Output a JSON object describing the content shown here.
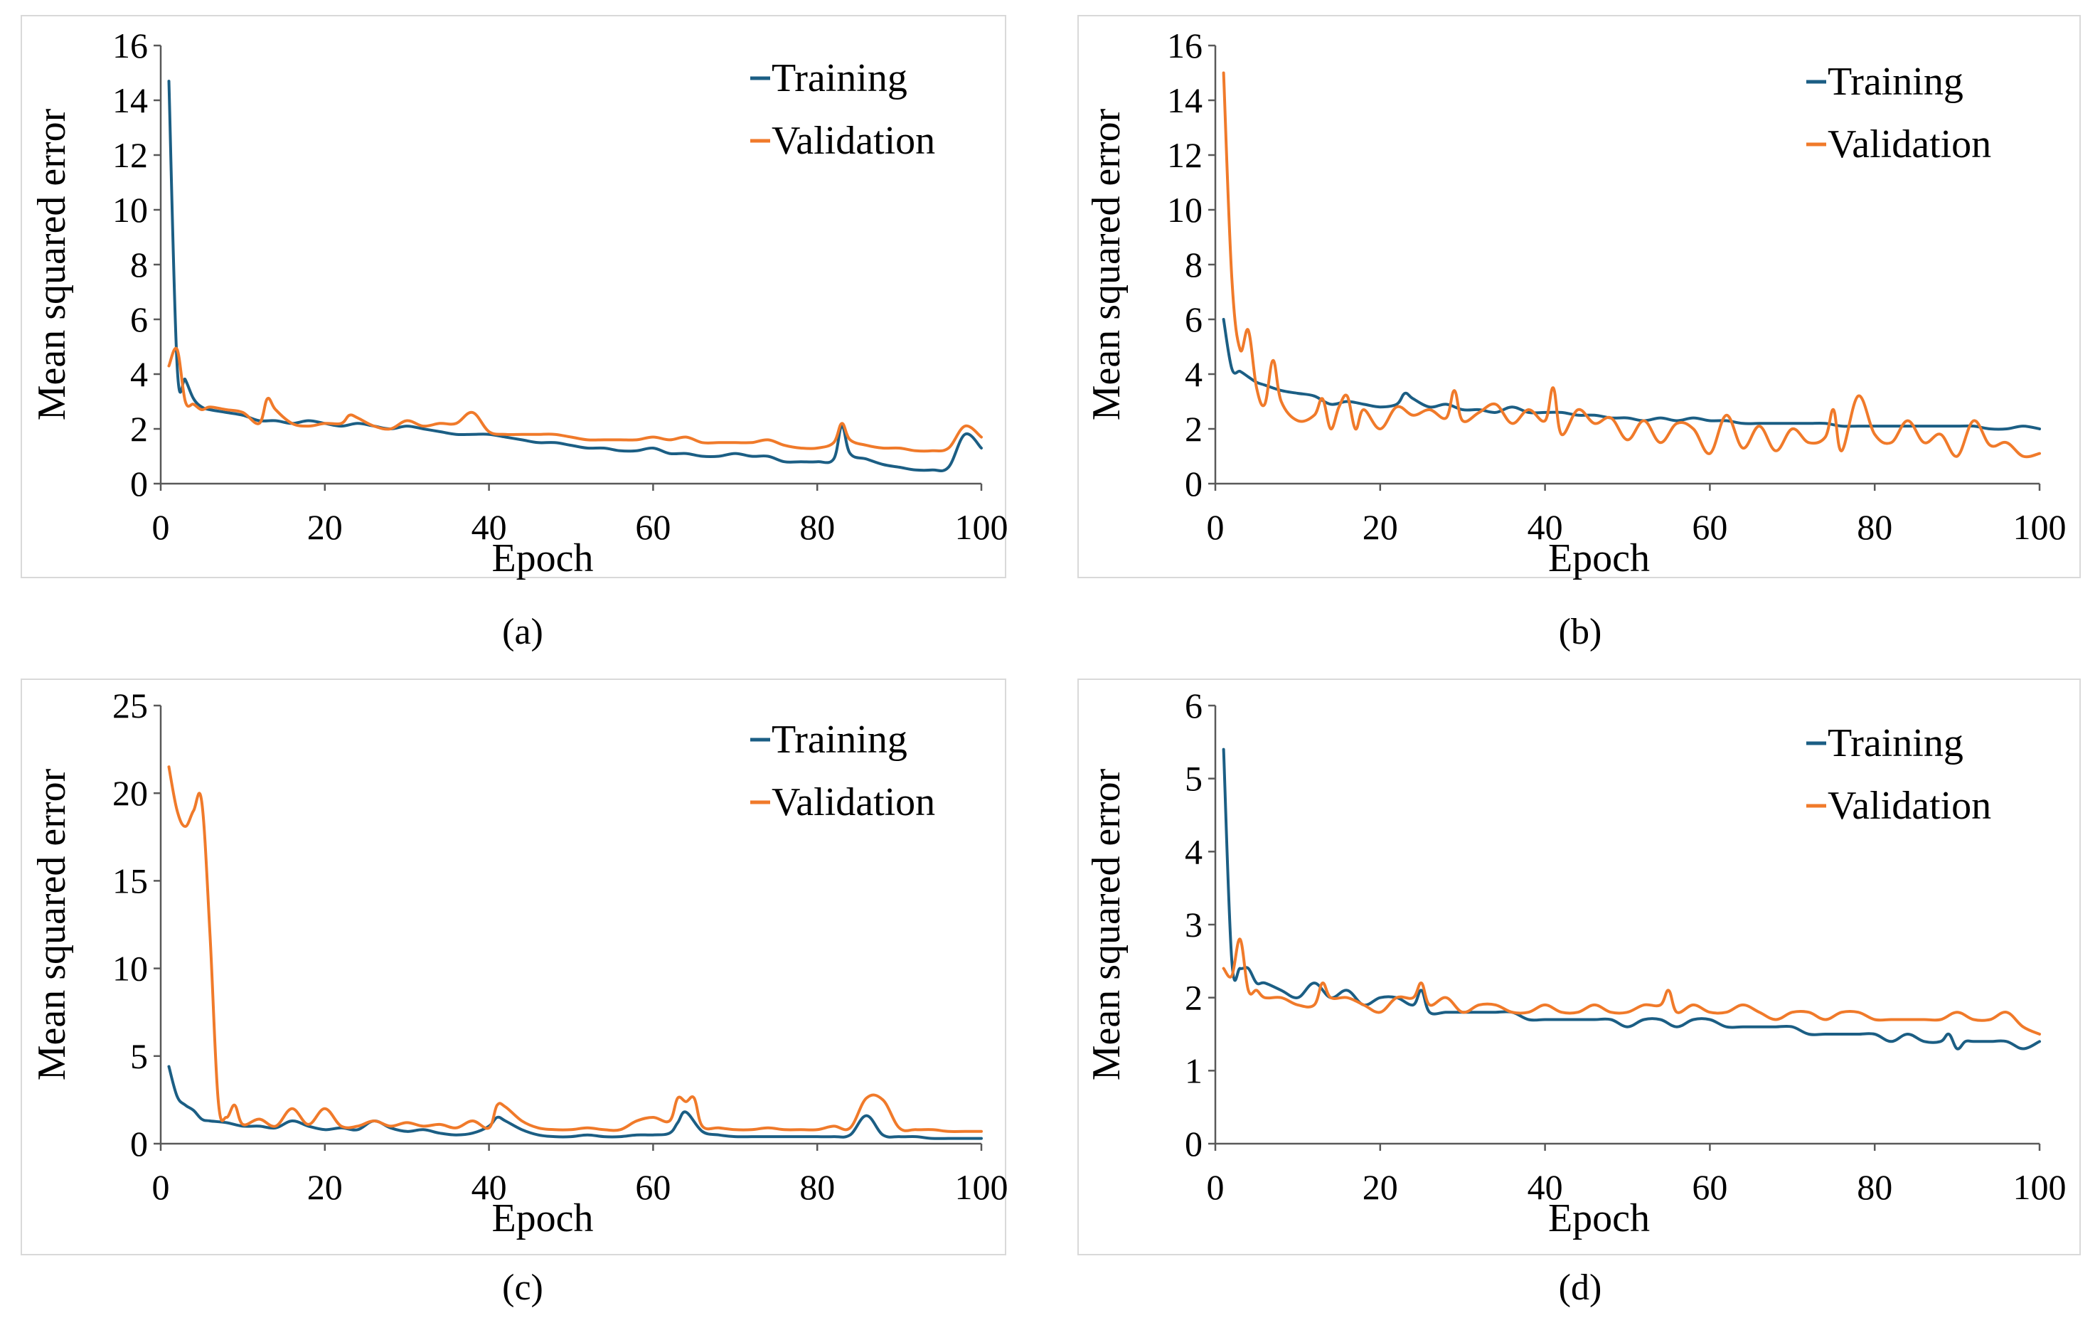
{
  "colors": {
    "training": "#1b5e84",
    "validation": "#f07a2a",
    "frame": "#d9d9d9",
    "axis": "#595959"
  },
  "chart_data": [
    {
      "type": "line",
      "panel": "(a)",
      "xlabel": "Epoch",
      "ylabel": "Mean squared error",
      "xlim": [
        0,
        100
      ],
      "ylim": [
        0,
        16
      ],
      "xticks": [
        "0",
        "20",
        "40",
        "60",
        "80",
        "100"
      ],
      "yticks": [
        "0",
        "2",
        "4",
        "6",
        "8",
        "10",
        "12",
        "14",
        "16"
      ],
      "series": [
        {
          "name": "Training",
          "x": [
            1,
            2,
            3,
            4,
            5,
            6,
            8,
            10,
            12,
            14,
            16,
            18,
            20,
            22,
            24,
            26,
            28,
            30,
            32,
            34,
            36,
            38,
            40,
            42,
            44,
            46,
            48,
            50,
            52,
            54,
            56,
            58,
            60,
            62,
            64,
            66,
            68,
            70,
            72,
            74,
            76,
            78,
            80,
            82,
            83,
            84,
            86,
            88,
            90,
            92,
            94,
            96,
            98,
            100
          ],
          "values": [
            14.7,
            4.3,
            3.8,
            3.1,
            2.8,
            2.7,
            2.6,
            2.5,
            2.3,
            2.3,
            2.2,
            2.3,
            2.2,
            2.1,
            2.2,
            2.1,
            2.0,
            2.1,
            2.0,
            1.9,
            1.8,
            1.8,
            1.8,
            1.7,
            1.6,
            1.5,
            1.5,
            1.4,
            1.3,
            1.3,
            1.2,
            1.2,
            1.3,
            1.1,
            1.1,
            1.0,
            1.0,
            1.1,
            1.0,
            1.0,
            0.8,
            0.8,
            0.8,
            0.9,
            2.1,
            1.1,
            0.9,
            0.7,
            0.6,
            0.5,
            0.5,
            0.6,
            1.8,
            1.3
          ]
        },
        {
          "name": "Validation",
          "x": [
            1,
            2,
            3,
            4,
            5,
            6,
            8,
            10,
            12,
            13,
            14,
            16,
            18,
            20,
            22,
            23,
            24,
            26,
            28,
            30,
            32,
            34,
            36,
            38,
            40,
            42,
            44,
            46,
            48,
            50,
            52,
            54,
            56,
            58,
            60,
            62,
            64,
            66,
            68,
            70,
            72,
            74,
            76,
            78,
            80,
            82,
            83,
            84,
            86,
            88,
            90,
            92,
            94,
            96,
            98,
            100
          ],
          "values": [
            4.3,
            4.9,
            3.0,
            2.9,
            2.7,
            2.8,
            2.7,
            2.6,
            2.2,
            3.1,
            2.7,
            2.2,
            2.1,
            2.2,
            2.2,
            2.5,
            2.4,
            2.1,
            2.0,
            2.3,
            2.1,
            2.2,
            2.2,
            2.6,
            1.9,
            1.8,
            1.8,
            1.8,
            1.8,
            1.7,
            1.6,
            1.6,
            1.6,
            1.6,
            1.7,
            1.6,
            1.7,
            1.5,
            1.5,
            1.5,
            1.5,
            1.6,
            1.4,
            1.3,
            1.3,
            1.5,
            2.2,
            1.6,
            1.4,
            1.3,
            1.3,
            1.2,
            1.2,
            1.3,
            2.1,
            1.7
          ]
        }
      ],
      "legend": [
        "Training",
        "Validation"
      ],
      "caption": "(a)"
    },
    {
      "type": "line",
      "panel": "(b)",
      "xlabel": "Epoch",
      "ylabel": "Mean squared error",
      "xlim": [
        0,
        100
      ],
      "ylim": [
        0,
        16
      ],
      "xticks": [
        "0",
        "20",
        "40",
        "60",
        "80",
        "100"
      ],
      "yticks": [
        "0",
        "2",
        "4",
        "6",
        "8",
        "10",
        "12",
        "14",
        "16"
      ],
      "series": [
        {
          "name": "Training",
          "x": [
            1,
            2,
            3,
            4,
            5,
            6,
            8,
            10,
            12,
            14,
            16,
            18,
            20,
            22,
            23,
            24,
            26,
            28,
            30,
            32,
            34,
            36,
            38,
            40,
            42,
            44,
            46,
            48,
            50,
            52,
            54,
            56,
            58,
            60,
            62,
            64,
            66,
            68,
            70,
            72,
            74,
            76,
            78,
            80,
            82,
            84,
            86,
            88,
            90,
            92,
            94,
            96,
            98,
            100
          ],
          "values": [
            6.0,
            4.2,
            4.1,
            3.9,
            3.7,
            3.6,
            3.4,
            3.3,
            3.2,
            2.9,
            3.0,
            2.9,
            2.8,
            2.9,
            3.3,
            3.1,
            2.8,
            2.9,
            2.7,
            2.7,
            2.6,
            2.8,
            2.6,
            2.6,
            2.6,
            2.5,
            2.5,
            2.4,
            2.4,
            2.3,
            2.4,
            2.3,
            2.4,
            2.3,
            2.3,
            2.2,
            2.2,
            2.2,
            2.2,
            2.2,
            2.2,
            2.1,
            2.1,
            2.1,
            2.1,
            2.1,
            2.1,
            2.1,
            2.1,
            2.1,
            2.0,
            2.0,
            2.1,
            2.0
          ]
        },
        {
          "name": "Validation",
          "x": [
            1,
            2,
            3,
            4,
            5,
            6,
            7,
            8,
            10,
            12,
            13,
            14,
            15,
            16,
            17,
            18,
            20,
            22,
            24,
            26,
            28,
            29,
            30,
            32,
            34,
            36,
            38,
            40,
            41,
            42,
            44,
            46,
            48,
            50,
            52,
            54,
            56,
            58,
            60,
            62,
            64,
            66,
            68,
            70,
            72,
            74,
            75,
            76,
            78,
            80,
            82,
            84,
            86,
            88,
            90,
            92,
            94,
            96,
            98,
            100
          ],
          "values": [
            15.0,
            7.5,
            4.9,
            5.6,
            3.5,
            2.9,
            4.5,
            3.0,
            2.3,
            2.5,
            3.1,
            2.0,
            2.8,
            3.2,
            2.0,
            2.7,
            2.0,
            2.8,
            2.5,
            2.7,
            2.4,
            3.4,
            2.3,
            2.6,
            2.9,
            2.2,
            2.7,
            2.3,
            3.5,
            1.8,
            2.7,
            2.2,
            2.4,
            1.6,
            2.3,
            1.5,
            2.2,
            2.0,
            1.1,
            2.5,
            1.3,
            2.1,
            1.2,
            2.0,
            1.5,
            1.7,
            2.7,
            1.2,
            3.2,
            1.8,
            1.5,
            2.3,
            1.5,
            1.8,
            1.0,
            2.3,
            1.4,
            1.5,
            1.0,
            1.1
          ]
        }
      ],
      "legend": [
        "Training",
        "Validation"
      ],
      "caption": "(b)"
    },
    {
      "type": "line",
      "panel": "(c)",
      "xlabel": "Epoch",
      "ylabel": "Mean squared error",
      "xlim": [
        0,
        100
      ],
      "ylim": [
        0,
        25
      ],
      "xticks": [
        "0",
        "20",
        "40",
        "60",
        "80",
        "100"
      ],
      "yticks": [
        "0",
        "5",
        "10",
        "15",
        "20",
        "25"
      ],
      "series": [
        {
          "name": "Training",
          "x": [
            1,
            2,
            3,
            4,
            5,
            6,
            8,
            10,
            12,
            14,
            16,
            18,
            20,
            22,
            24,
            26,
            28,
            30,
            32,
            34,
            36,
            38,
            40,
            41,
            42,
            44,
            46,
            48,
            50,
            52,
            54,
            56,
            58,
            60,
            62,
            63,
            64,
            66,
            68,
            70,
            72,
            74,
            76,
            78,
            80,
            82,
            84,
            86,
            88,
            90,
            92,
            94,
            96,
            98,
            100
          ],
          "values": [
            4.4,
            2.7,
            2.2,
            1.9,
            1.4,
            1.3,
            1.2,
            1.0,
            1.0,
            0.9,
            1.3,
            1.0,
            0.8,
            0.9,
            0.8,
            1.3,
            0.9,
            0.7,
            0.8,
            0.6,
            0.5,
            0.6,
            1.0,
            1.5,
            1.3,
            0.8,
            0.5,
            0.4,
            0.4,
            0.5,
            0.4,
            0.4,
            0.5,
            0.5,
            0.6,
            1.2,
            1.8,
            0.7,
            0.5,
            0.4,
            0.4,
            0.4,
            0.4,
            0.4,
            0.4,
            0.4,
            0.5,
            1.6,
            0.5,
            0.4,
            0.4,
            0.3,
            0.3,
            0.3,
            0.3
          ]
        },
        {
          "name": "Validation",
          "x": [
            1,
            2,
            3,
            4,
            5,
            6,
            7,
            8,
            9,
            10,
            12,
            14,
            16,
            18,
            20,
            22,
            24,
            26,
            28,
            30,
            32,
            34,
            36,
            38,
            40,
            41,
            42,
            44,
            46,
            48,
            50,
            52,
            54,
            56,
            58,
            60,
            62,
            63,
            64,
            65,
            66,
            68,
            70,
            72,
            74,
            76,
            78,
            80,
            82,
            84,
            86,
            88,
            90,
            92,
            94,
            96,
            98,
            100
          ],
          "values": [
            21.5,
            19.0,
            18.1,
            19.0,
            19.5,
            12.0,
            2.5,
            1.5,
            2.2,
            1.1,
            1.4,
            1.0,
            2.0,
            1.1,
            2.0,
            1.0,
            1.0,
            1.3,
            1.0,
            1.2,
            1.0,
            1.1,
            0.9,
            1.3,
            0.9,
            2.2,
            2.1,
            1.3,
            0.9,
            0.8,
            0.8,
            0.9,
            0.8,
            0.8,
            1.3,
            1.5,
            1.3,
            2.6,
            2.4,
            2.6,
            1.0,
            0.9,
            0.8,
            0.8,
            0.9,
            0.8,
            0.8,
            0.8,
            1.0,
            0.9,
            2.6,
            2.5,
            0.9,
            0.8,
            0.8,
            0.7,
            0.7,
            0.7
          ]
        }
      ],
      "legend": [
        "Training",
        "Validation"
      ],
      "caption": "(c)"
    },
    {
      "type": "line",
      "panel": "(d)",
      "xlabel": "Epoch",
      "ylabel": "Mean squared error",
      "xlim": [
        0,
        100
      ],
      "ylim": [
        0,
        6
      ],
      "xticks": [
        "0",
        "20",
        "40",
        "60",
        "80",
        "100"
      ],
      "yticks": [
        "0",
        "1",
        "2",
        "3",
        "4",
        "5",
        "6"
      ],
      "series": [
        {
          "name": "Training",
          "x": [
            1,
            2,
            3,
            4,
            5,
            6,
            8,
            10,
            12,
            14,
            16,
            18,
            20,
            22,
            24,
            25,
            26,
            28,
            30,
            32,
            34,
            36,
            38,
            40,
            42,
            44,
            46,
            48,
            50,
            52,
            54,
            56,
            58,
            60,
            62,
            64,
            66,
            68,
            70,
            72,
            74,
            76,
            78,
            80,
            82,
            84,
            86,
            88,
            89,
            90,
            91,
            92,
            94,
            96,
            98,
            100
          ],
          "values": [
            5.4,
            2.5,
            2.4,
            2.4,
            2.2,
            2.2,
            2.1,
            2.0,
            2.2,
            2.0,
            2.1,
            1.9,
            2.0,
            2.0,
            1.9,
            2.1,
            1.8,
            1.8,
            1.8,
            1.8,
            1.8,
            1.8,
            1.7,
            1.7,
            1.7,
            1.7,
            1.7,
            1.7,
            1.6,
            1.7,
            1.7,
            1.6,
            1.7,
            1.7,
            1.6,
            1.6,
            1.6,
            1.6,
            1.6,
            1.5,
            1.5,
            1.5,
            1.5,
            1.5,
            1.4,
            1.5,
            1.4,
            1.4,
            1.5,
            1.3,
            1.4,
            1.4,
            1.4,
            1.4,
            1.3,
            1.4
          ]
        },
        {
          "name": "Validation",
          "x": [
            1,
            2,
            3,
            4,
            5,
            6,
            8,
            10,
            12,
            13,
            14,
            16,
            18,
            20,
            22,
            24,
            25,
            26,
            28,
            30,
            32,
            34,
            36,
            38,
            40,
            42,
            44,
            46,
            48,
            50,
            52,
            54,
            55,
            56,
            58,
            60,
            62,
            64,
            66,
            68,
            70,
            72,
            74,
            76,
            78,
            80,
            82,
            84,
            86,
            88,
            90,
            92,
            94,
            96,
            98,
            100
          ],
          "values": [
            2.4,
            2.3,
            2.8,
            2.1,
            2.1,
            2.0,
            2.0,
            1.9,
            1.9,
            2.2,
            2.0,
            2.0,
            1.9,
            1.8,
            2.0,
            2.0,
            2.2,
            1.9,
            2.0,
            1.8,
            1.9,
            1.9,
            1.8,
            1.8,
            1.9,
            1.8,
            1.8,
            1.9,
            1.8,
            1.8,
            1.9,
            1.9,
            2.1,
            1.8,
            1.9,
            1.8,
            1.8,
            1.9,
            1.8,
            1.7,
            1.8,
            1.8,
            1.7,
            1.8,
            1.8,
            1.7,
            1.7,
            1.7,
            1.7,
            1.7,
            1.8,
            1.7,
            1.7,
            1.8,
            1.6,
            1.5
          ]
        }
      ],
      "legend": [
        "Training",
        "Validation"
      ],
      "caption": "(d)"
    }
  ]
}
